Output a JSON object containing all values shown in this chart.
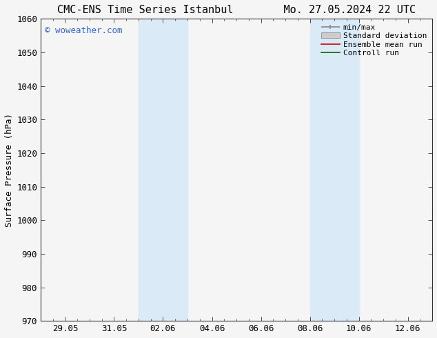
{
  "title_left": "CMC-ENS Time Series Istanbul",
  "title_right": "Mo. 27.05.2024 22 UTC",
  "ylabel": "Surface Pressure (hPa)",
  "ylim": [
    970,
    1060
  ],
  "yticks": [
    970,
    980,
    990,
    1000,
    1010,
    1020,
    1030,
    1040,
    1050,
    1060
  ],
  "xlim": [
    0,
    16
  ],
  "xtick_positions": [
    1,
    3,
    5,
    7,
    9,
    11,
    13,
    15
  ],
  "xtick_labels": [
    "29.05",
    "31.05",
    "02.06",
    "04.06",
    "06.06",
    "08.06",
    "10.06",
    "12.06"
  ],
  "shaded_bands": [
    {
      "x_start": 4.0,
      "x_end": 6.0
    },
    {
      "x_start": 11.0,
      "x_end": 13.0
    }
  ],
  "shaded_color": "#daeaf7",
  "plot_bg_color": "#f5f5f5",
  "fig_bg_color": "#f5f5f5",
  "watermark_text": "© woweather.com",
  "watermark_color": "#3366cc",
  "legend_labels": [
    "min/max",
    "Standard deviation",
    "Ensemble mean run",
    "Controll run"
  ],
  "minmax_color": "#888888",
  "std_dev_color": "#cccccc",
  "ensemble_color": "#cc0000",
  "control_color": "#006600",
  "title_fontsize": 11,
  "axis_label_fontsize": 9,
  "tick_fontsize": 9,
  "legend_fontsize": 8,
  "watermark_fontsize": 9,
  "spine_color": "#333333"
}
